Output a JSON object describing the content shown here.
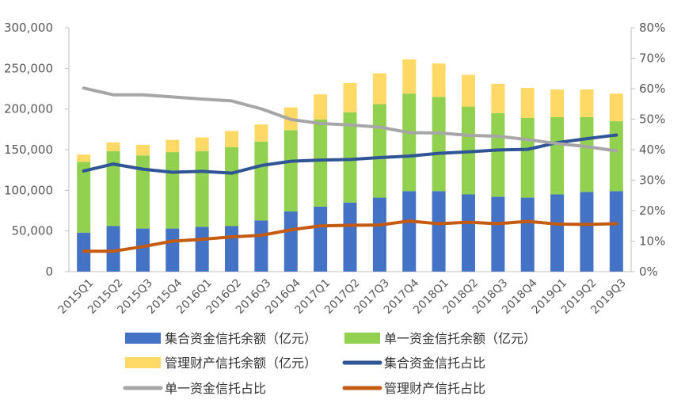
{
  "chart_data": {
    "type": "bar",
    "stacked": true,
    "categories": [
      "2015Q1",
      "2015Q2",
      "2015Q3",
      "2015Q4",
      "2016Q1",
      "2016Q2",
      "2016Q3",
      "2016Q4",
      "2017Q1",
      "2017Q2",
      "2017Q3",
      "2017Q4",
      "2018Q1",
      "2018Q2",
      "2018Q3",
      "2018Q4",
      "2019Q1",
      "2019Q2",
      "2019Q3"
    ],
    "bar_series": [
      {
        "name": "集合资金信托余额（亿元）",
        "color": "#4472C4",
        "values": [
          48000,
          56000,
          53000,
          53000,
          55000,
          56000,
          63000,
          74000,
          80000,
          85000,
          91000,
          99000,
          99000,
          95000,
          92000,
          91000,
          95000,
          98000,
          99000
        ]
      },
      {
        "name": "单一资金信托余额（亿元）",
        "color": "#92D050",
        "values": [
          87000,
          92000,
          90000,
          94000,
          93000,
          97000,
          97000,
          100000,
          107000,
          111000,
          115000,
          120000,
          116000,
          108000,
          103000,
          98000,
          95000,
          92000,
          86000
        ]
      },
      {
        "name": "管理财产信托余额（亿元）",
        "color": "#FFD966",
        "values": [
          9000,
          11000,
          13000,
          15000,
          17000,
          20000,
          21000,
          28000,
          31000,
          36000,
          38000,
          42000,
          41000,
          39000,
          36000,
          37000,
          34000,
          34000,
          34000
        ]
      }
    ],
    "line_series": [
      {
        "name": "集合资金信托占比",
        "color": "#2F5597",
        "values": [
          33.0,
          35.3,
          33.6,
          32.6,
          32.9,
          32.3,
          34.8,
          36.2,
          36.6,
          36.8,
          37.4,
          37.9,
          38.8,
          39.3,
          39.9,
          40.1,
          42.3,
          43.6,
          44.8
        ]
      },
      {
        "name": "单一资金信托占比",
        "color": "#A6A6A6",
        "values": [
          60.2,
          58.0,
          58.0,
          57.3,
          56.6,
          56.0,
          53.4,
          49.9,
          48.6,
          48.1,
          47.4,
          45.6,
          45.5,
          44.7,
          44.4,
          43.3,
          42.0,
          41.0,
          39.6
        ]
      },
      {
        "name": "管理财产信托占比",
        "color": "#C55A11",
        "values": [
          6.7,
          6.7,
          8.2,
          10.0,
          10.6,
          11.4,
          11.9,
          13.7,
          15.0,
          15.2,
          15.3,
          16.6,
          15.7,
          16.2,
          15.7,
          16.5,
          15.6,
          15.5,
          15.7
        ]
      }
    ],
    "y_left": {
      "min": 0,
      "max": 300000,
      "ticks": [
        "0",
        "50,000",
        "100,000",
        "150,000",
        "200,000",
        "250,000",
        "300,000"
      ]
    },
    "y_right": {
      "min": 0,
      "max": 80,
      "ticks": [
        "0%",
        "10%",
        "20%",
        "30%",
        "40%",
        "50%",
        "60%",
        "70%",
        "80%"
      ]
    },
    "grid": false,
    "legend_position": "bottom"
  }
}
